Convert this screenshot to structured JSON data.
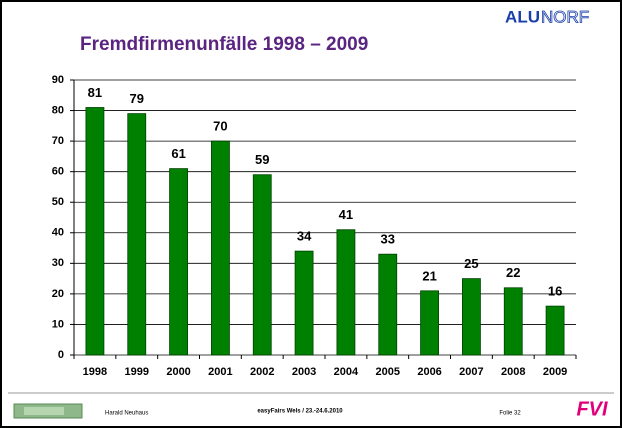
{
  "chart_data": {
    "type": "bar",
    "title": "Fremdfirmenunfälle 1998 – 2009",
    "categories": [
      "1998",
      "1999",
      "2000",
      "2001",
      "2002",
      "2003",
      "2004",
      "2005",
      "2006",
      "2007",
      "2008",
      "2009"
    ],
    "values": [
      81,
      79,
      61,
      70,
      59,
      34,
      41,
      33,
      21,
      25,
      22,
      16
    ],
    "color": "#008000",
    "ylim": [
      0,
      90
    ],
    "yticks": [
      0,
      10,
      20,
      30,
      40,
      50,
      60,
      70,
      80,
      90
    ],
    "grid": true
  },
  "logo": {
    "bold": "ALU",
    "outline": "NORF"
  },
  "footer": {
    "author": "Harald Neuhaus",
    "event": "easyFairs Wels / 23.-24.6.2010",
    "slide": "Folie 32",
    "badge": "FVI"
  }
}
